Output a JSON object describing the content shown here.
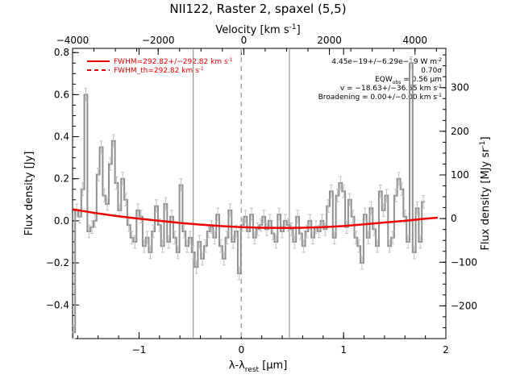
{
  "chart_data": {
    "type": "line",
    "title": "NII122, Raster 2, spaxel (5,5)",
    "xlabel": "λ-λ",
    "xlabel_sub": "rest",
    "xlabel_unit": " [μm]",
    "ylabel": "Flux density [Jy]",
    "ylabel_right": "Flux density [MJy sr",
    "ylabel_right_sup": "-1",
    "ylabel_right_end": "]",
    "xlabel_top": "Velocity [km s",
    "xlabel_top_sup": "-1",
    "xlabel_top_end": "]",
    "xlim": [
      -1.65,
      2.0
    ],
    "ylim": [
      -0.56,
      0.82
    ],
    "top_xlim": [
      -4000,
      4720
    ],
    "right_ylim": [
      -275,
      390
    ],
    "xticks": [
      -1,
      0,
      1,
      2
    ],
    "xtick_labels": [
      "−1",
      "0",
      "1",
      "2"
    ],
    "yticks": [
      -0.4,
      -0.2,
      0.0,
      0.2,
      0.4,
      0.6,
      0.8
    ],
    "ytick_labels": [
      "−0.4",
      "−0.2",
      "0.0",
      "0.2",
      "0.4",
      "0.6",
      "0.8"
    ],
    "top_ticks": [
      -4000,
      -2000,
      0,
      2000,
      4000
    ],
    "top_tick_labels": [
      "−4000",
      "−2000",
      "0",
      "2000",
      "4000"
    ],
    "right_ticks": [
      -200,
      -100,
      0,
      100,
      200,
      300
    ],
    "right_tick_labels": [
      "−200",
      "−100",
      "0",
      "100",
      "200",
      "300"
    ],
    "vlines_solid": [
      -0.47,
      0.47
    ],
    "vline_dashed": 0.0,
    "grid": false,
    "legend_position": "top-left",
    "legend": [
      {
        "label": "FWHM=292.82+/−292.82 km s",
        "sup": "-1",
        "style": "solid",
        "color": "#ee0000"
      },
      {
        "label": "FWHM_th=292.82 km s",
        "sup": "-1",
        "style": "dashed",
        "color": "#ee0000"
      }
    ],
    "annotations": [
      {
        "text": "4.45e−19+/−6.29e−19 W m",
        "sup": "-2"
      },
      {
        "text": "0.70σ",
        "sup": ""
      },
      {
        "text": "EQW",
        "sub": "obs",
        "rest": " = 0.56 μm"
      },
      {
        "text": "v = −18.63+/−36.55 km s",
        "sup": "-1"
      },
      {
        "text": "Broadening = 0.00+/−0.00 km s",
        "sup": "-1"
      }
    ],
    "series": [
      {
        "name": "spectrum",
        "color": "#909090",
        "style": "step",
        "x": [
          -1.64,
          -1.61,
          -1.58,
          -1.55,
          -1.52,
          -1.49,
          -1.46,
          -1.43,
          -1.4,
          -1.37,
          -1.34,
          -1.31,
          -1.28,
          -1.25,
          -1.22,
          -1.19,
          -1.16,
          -1.13,
          -1.1,
          -1.07,
          -1.04,
          -1.01,
          -0.98,
          -0.95,
          -0.92,
          -0.89,
          -0.86,
          -0.83,
          -0.8,
          -0.77,
          -0.74,
          -0.71,
          -0.68,
          -0.65,
          -0.62,
          -0.59,
          -0.56,
          -0.53,
          -0.5,
          -0.47,
          -0.44,
          -0.41,
          -0.38,
          -0.35,
          -0.32,
          -0.29,
          -0.26,
          -0.23,
          -0.2,
          -0.17,
          -0.14,
          -0.11,
          -0.08,
          -0.05,
          -0.02,
          0.01,
          0.04,
          0.07,
          0.1,
          0.13,
          0.16,
          0.19,
          0.22,
          0.25,
          0.28,
          0.31,
          0.34,
          0.37,
          0.4,
          0.43,
          0.46,
          0.49,
          0.52,
          0.55,
          0.58,
          0.61,
          0.64,
          0.67,
          0.7,
          0.73,
          0.76,
          0.79,
          0.82,
          0.85,
          0.88,
          0.91,
          0.94,
          0.97,
          1.0,
          1.03,
          1.06,
          1.09,
          1.12,
          1.15,
          1.18,
          1.21,
          1.24,
          1.27,
          1.3,
          1.33,
          1.36,
          1.39,
          1.42,
          1.45,
          1.48,
          1.51,
          1.54,
          1.57,
          1.6,
          1.63,
          1.66,
          1.69,
          1.72,
          1.75,
          1.78
        ],
        "y": [
          -0.53,
          0.05,
          0.02,
          0.15,
          0.6,
          -0.05,
          -0.03,
          0.0,
          0.22,
          0.35,
          0.12,
          0.08,
          0.27,
          0.38,
          0.18,
          0.05,
          0.2,
          0.1,
          -0.02,
          -0.08,
          -0.1,
          0.05,
          0.02,
          -0.12,
          -0.08,
          -0.15,
          -0.05,
          0.07,
          -0.02,
          -0.12,
          0.08,
          -0.1,
          0.02,
          -0.08,
          -0.15,
          0.17,
          -0.05,
          -0.12,
          -0.08,
          -0.15,
          -0.22,
          -0.1,
          -0.18,
          -0.12,
          -0.05,
          -0.03,
          -0.08,
          0.03,
          -0.12,
          -0.18,
          -0.08,
          0.05,
          -0.1,
          -0.05,
          -0.25,
          -0.02,
          0.02,
          -0.05,
          0.03,
          -0.08,
          -0.04,
          -0.02,
          0.02,
          -0.04,
          0.0,
          -0.06,
          -0.1,
          0.03,
          -0.05,
          0.0,
          -0.02,
          -0.04,
          -0.1,
          0.02,
          -0.06,
          -0.12,
          -0.05,
          0.0,
          -0.08,
          -0.03,
          -0.05,
          0.0,
          -0.04,
          0.07,
          0.14,
          -0.08,
          0.12,
          0.18,
          0.14,
          -0.03,
          0.1,
          0.02,
          -0.08,
          -0.12,
          -0.2,
          0.03,
          -0.08,
          0.06,
          -0.04,
          -0.12,
          0.14,
          0.05,
          0.12,
          -0.12,
          -0.08,
          0.12,
          0.2,
          0.15,
          0.02,
          -0.1,
          0.75,
          -0.15,
          0.06,
          -0.1,
          0.09
        ]
      },
      {
        "name": "fit",
        "color": "#ee0000",
        "style": "line",
        "x": [
          -1.65,
          -1.4,
          -1.2,
          -1.0,
          -0.8,
          -0.6,
          -0.4,
          -0.2,
          0.0,
          0.2,
          0.4,
          0.6,
          0.8,
          1.0,
          1.2,
          1.4,
          1.6,
          1.8,
          1.92
        ],
        "y": [
          0.055,
          0.035,
          0.022,
          0.01,
          0.0,
          -0.01,
          -0.018,
          -0.025,
          -0.03,
          -0.033,
          -0.034,
          -0.033,
          -0.03,
          -0.025,
          -0.017,
          -0.008,
          0.0,
          0.01,
          0.015
        ]
      }
    ]
  }
}
